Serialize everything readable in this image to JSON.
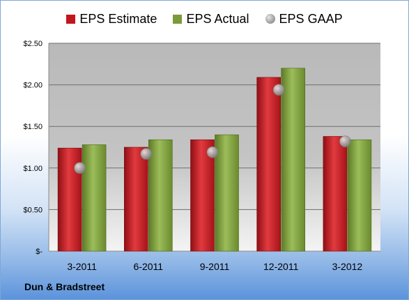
{
  "chart_data": {
    "type": "bar",
    "categories": [
      "3-2011",
      "6-2011",
      "9-2011",
      "12-2011",
      "3-2012"
    ],
    "series": [
      {
        "name": "EPS Estimate",
        "kind": "bar",
        "color": "#c0161c",
        "values": [
          1.24,
          1.25,
          1.34,
          2.09,
          1.38
        ]
      },
      {
        "name": "EPS Actual",
        "kind": "bar",
        "color": "#7b9a3a",
        "values": [
          1.28,
          1.34,
          1.4,
          2.2,
          1.34
        ]
      },
      {
        "name": "EPS GAAP",
        "kind": "marker",
        "color": "#9a9a9a",
        "values": [
          1.0,
          1.17,
          1.19,
          1.94,
          1.32
        ]
      }
    ],
    "ylim": [
      0,
      2.5
    ],
    "yticks": [
      {
        "value": 0,
        "label": "$-"
      },
      {
        "value": 0.5,
        "label": "$0.50"
      },
      {
        "value": 1.0,
        "label": "$1.00"
      },
      {
        "value": 1.5,
        "label": "$1.50"
      },
      {
        "value": 2.0,
        "label": "$2.00"
      },
      {
        "value": 2.5,
        "label": "$2.50"
      }
    ],
    "grid": true,
    "legend_position": "top"
  },
  "footer": {
    "company": "Dun & Bradstreet"
  }
}
